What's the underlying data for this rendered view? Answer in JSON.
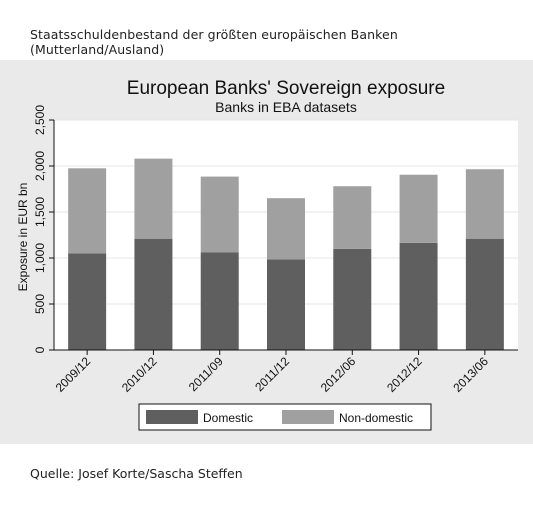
{
  "caption": "Staatsschuldenbestand der größten europäischen Banken (Mutterland/Ausland)",
  "source": "Quelle: Josef Korte/Sascha Steffen",
  "colors": {
    "domestic": "#5f5f5f",
    "non_domestic": "#a0a0a0",
    "panel": "#eaeaea",
    "plot": "#ffffff",
    "grid": "#e6e6e6"
  },
  "chart_data": {
    "type": "bar",
    "stacked": true,
    "title": "European Banks' Sovereign exposure",
    "subtitle": "Banks in EBA datasets",
    "xlabel": "",
    "ylabel": "Exposure in EUR bn",
    "categories": [
      "2009/12",
      "2010/12",
      "2011/09",
      "2011/12",
      "2012/06",
      "2012/12",
      "2013/06"
    ],
    "series": [
      {
        "name": "Domestic",
        "values": [
          1050,
          1210,
          1060,
          985,
          1100,
          1165,
          1210
        ]
      },
      {
        "name": "Non-domestic",
        "values": [
          925,
          870,
          825,
          665,
          680,
          740,
          755
        ]
      }
    ],
    "ylim": [
      0,
      2500
    ],
    "yticks": [
      0,
      500,
      1000,
      1500,
      2000,
      2500
    ],
    "ytick_labels": [
      "0",
      "500",
      "1,000",
      "1,500",
      "2,000",
      "2,500"
    ],
    "grid": true,
    "legend": "bottom"
  }
}
